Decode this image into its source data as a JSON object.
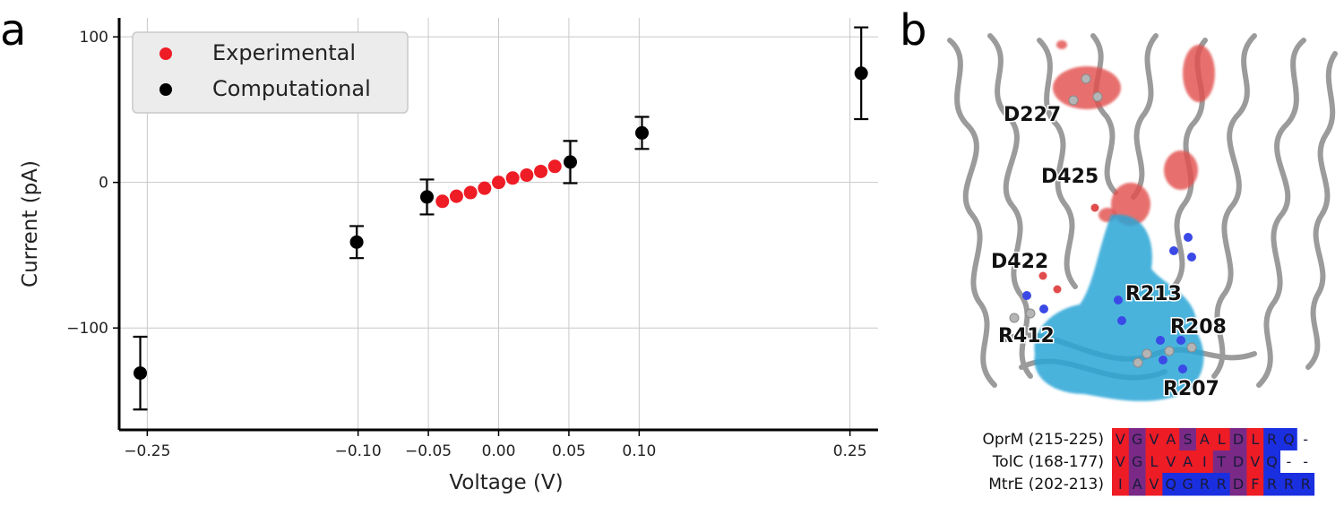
{
  "panel_a_label": "a",
  "panel_b_label": "b",
  "chart_data": {
    "type": "scatter",
    "xlabel": "Voltage (V)",
    "ylabel": "Current (pA)",
    "xlim": [
      -0.27,
      0.27
    ],
    "ylim": [
      -170,
      113
    ],
    "x_ticks": [
      {
        "value": -0.25,
        "label": "−0.25"
      },
      {
        "value": -0.1,
        "label": "−0.10"
      },
      {
        "value": -0.05,
        "label": "−0.05"
      },
      {
        "value": 0.0,
        "label": "0.00"
      },
      {
        "value": 0.05,
        "label": "0.05"
      },
      {
        "value": 0.1,
        "label": "0.10"
      },
      {
        "value": 0.25,
        "label": "0.25"
      }
    ],
    "y_ticks": [
      {
        "value": 100,
        "label": "100"
      },
      {
        "value": 0,
        "label": "0"
      },
      {
        "value": -100,
        "label": "−100"
      }
    ],
    "grid": true,
    "legend_position": "top-left",
    "series": [
      {
        "name": "Experimental",
        "color": "#ee1c25",
        "points": [
          {
            "x": -0.04,
            "y": -13
          },
          {
            "x": -0.03,
            "y": -9.5
          },
          {
            "x": -0.02,
            "y": -7
          },
          {
            "x": -0.01,
            "y": -4
          },
          {
            "x": 0.0,
            "y": 0
          },
          {
            "x": 0.01,
            "y": 3
          },
          {
            "x": 0.02,
            "y": 5
          },
          {
            "x": 0.03,
            "y": 7.5
          },
          {
            "x": 0.04,
            "y": 11
          }
        ]
      },
      {
        "name": "Computational",
        "color": "#000000",
        "points": [
          {
            "x": -0.255,
            "y": -131,
            "err": 25
          },
          {
            "x": -0.101,
            "y": -41,
            "err": 11
          },
          {
            "x": -0.051,
            "y": -10,
            "err": 12
          },
          {
            "x": 0.051,
            "y": 14,
            "err": 14.5
          },
          {
            "x": 0.102,
            "y": 34,
            "err": 11
          },
          {
            "x": 0.258,
            "y": 75,
            "err": 31.5
          }
        ]
      }
    ]
  },
  "structure": {
    "residue_labels": [
      "D227",
      "D425",
      "D422",
      "R213",
      "R208",
      "R412",
      "R207"
    ]
  },
  "alignment": {
    "colors": {
      "red": "#ee1c25",
      "purple": "#7a2a86",
      "blue": "#1a2fe0",
      "gap": "#ffffff"
    },
    "rows": [
      {
        "name": "OprM (215-225)",
        "cells": [
          {
            "ch": "V",
            "c": "red"
          },
          {
            "ch": "G",
            "c": "purple"
          },
          {
            "ch": "V",
            "c": "red"
          },
          {
            "ch": "A",
            "c": "red"
          },
          {
            "ch": "S",
            "c": "purple"
          },
          {
            "ch": "A",
            "c": "red"
          },
          {
            "ch": "L",
            "c": "red"
          },
          {
            "ch": "D",
            "c": "purple"
          },
          {
            "ch": "L",
            "c": "red"
          },
          {
            "ch": "R",
            "c": "blue"
          },
          {
            "ch": "Q",
            "c": "blue"
          },
          {
            "ch": "-",
            "c": "gap"
          }
        ]
      },
      {
        "name": "TolC (168-177)",
        "cells": [
          {
            "ch": "V",
            "c": "red"
          },
          {
            "ch": "G",
            "c": "purple"
          },
          {
            "ch": "L",
            "c": "red"
          },
          {
            "ch": "V",
            "c": "red"
          },
          {
            "ch": "A",
            "c": "red"
          },
          {
            "ch": "I",
            "c": "red"
          },
          {
            "ch": "T",
            "c": "purple"
          },
          {
            "ch": "D",
            "c": "purple"
          },
          {
            "ch": "V",
            "c": "red"
          },
          {
            "ch": "Q",
            "c": "blue"
          },
          {
            "ch": "-",
            "c": "gap"
          },
          {
            "ch": "-",
            "c": "gap"
          }
        ]
      },
      {
        "name": "MtrE (202-213)",
        "cells": [
          {
            "ch": "I",
            "c": "red"
          },
          {
            "ch": "A",
            "c": "purple"
          },
          {
            "ch": "V",
            "c": "red"
          },
          {
            "ch": "Q",
            "c": "blue"
          },
          {
            "ch": "G",
            "c": "blue"
          },
          {
            "ch": "R",
            "c": "blue"
          },
          {
            "ch": "R",
            "c": "blue"
          },
          {
            "ch": "D",
            "c": "purple"
          },
          {
            "ch": "F",
            "c": "red"
          },
          {
            "ch": "R",
            "c": "blue"
          },
          {
            "ch": "R",
            "c": "blue"
          },
          {
            "ch": "R",
            "c": "blue"
          }
        ]
      }
    ]
  }
}
